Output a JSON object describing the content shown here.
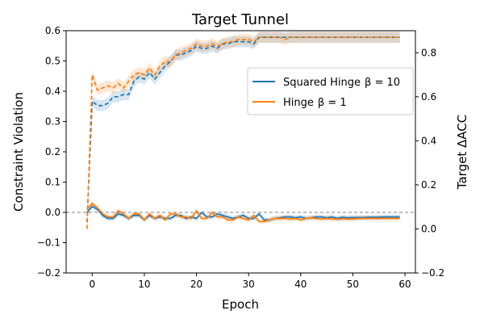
{
  "chart_data": {
    "type": "line",
    "title": "Target Tunnel",
    "xlabel": "Epoch",
    "ylabel": "Constraint Violation",
    "ylabel_right": "Target ΔACC",
    "xlim": [
      -5,
      62
    ],
    "ylim": [
      -0.2,
      0.6
    ],
    "ylim_right": [
      -0.2,
      0.9
    ],
    "xticks": [
      0,
      10,
      20,
      30,
      40,
      50,
      60
    ],
    "yticks": [
      -0.2,
      -0.1,
      0.0,
      0.1,
      0.2,
      0.3,
      0.4,
      0.5,
      0.6
    ],
    "yticks_right": [
      -0.2,
      0.0,
      0.2,
      0.4,
      0.6,
      0.8
    ],
    "ytick_labels": [
      "−0.2",
      "−0.1",
      "0.0",
      "0.1",
      "0.2",
      "0.3",
      "0.4",
      "0.5",
      "0.6"
    ],
    "ytick_labels_right": [
      "−0.2",
      "0.0",
      "0.2",
      "0.4",
      "0.6",
      "0.8"
    ],
    "xtick_labels": [
      "0",
      "10",
      "20",
      "30",
      "40",
      "50",
      "60"
    ],
    "reference_line_y": 0.0,
    "legend_position": "center-right",
    "legend": [
      {
        "series": "Squared Hinge",
        "label": "Squared Hinge",
        "param": "β = 10",
        "color": "#1f77b4"
      },
      {
        "series": "Hinge",
        "label": "Hinge",
        "param": "β = 1",
        "color": "#ff7f0e"
      }
    ],
    "epochs": [
      -1,
      0,
      1,
      2,
      3,
      4,
      5,
      6,
      7,
      8,
      9,
      10,
      11,
      12,
      13,
      14,
      15,
      16,
      17,
      18,
      19,
      20,
      21,
      22,
      23,
      24,
      25,
      26,
      27,
      28,
      29,
      30,
      31,
      32,
      33,
      34,
      35,
      36,
      37,
      38,
      39,
      40,
      41,
      42,
      43,
      44,
      45,
      46,
      47,
      48,
      49,
      50,
      51,
      52,
      53,
      54,
      55,
      56,
      57,
      58,
      59
    ],
    "series": [
      {
        "name": "Squared Hinge",
        "color": "#1f77b4",
        "axis": "left",
        "style": "solid",
        "metric": "Constraint Violation",
        "values": [
          0.0,
          0.02,
          0.01,
          -0.01,
          -0.02,
          -0.02,
          -0.005,
          -0.01,
          -0.02,
          -0.01,
          -0.01,
          -0.025,
          -0.01,
          -0.02,
          -0.015,
          -0.02,
          -0.02,
          -0.01,
          -0.01,
          -0.02,
          -0.015,
          -0.02,
          0.0,
          -0.015,
          -0.015,
          -0.005,
          -0.01,
          -0.015,
          -0.02,
          -0.015,
          -0.01,
          -0.02,
          -0.02,
          -0.005,
          -0.025,
          -0.025,
          -0.02,
          -0.018,
          -0.015,
          -0.015,
          -0.018,
          -0.015,
          -0.02,
          -0.018,
          -0.015,
          -0.015,
          -0.018,
          -0.015,
          -0.02,
          -0.016,
          -0.018,
          -0.017,
          -0.017,
          -0.017,
          -0.016,
          -0.016,
          -0.016,
          -0.015,
          -0.015,
          -0.015,
          -0.015
        ]
      },
      {
        "name": "Hinge",
        "color": "#ff7f0e",
        "axis": "left",
        "style": "solid",
        "metric": "Constraint Violation",
        "values": [
          0.01,
          0.03,
          0.015,
          -0.005,
          -0.015,
          -0.015,
          0.005,
          -0.005,
          -0.02,
          -0.005,
          -0.005,
          -0.025,
          -0.005,
          -0.02,
          -0.01,
          -0.025,
          -0.005,
          -0.005,
          -0.015,
          -0.015,
          -0.02,
          0.005,
          -0.02,
          -0.02,
          0.0,
          -0.015,
          -0.015,
          -0.025,
          -0.025,
          -0.015,
          -0.02,
          -0.025,
          -0.01,
          -0.03,
          -0.03,
          -0.025,
          -0.02,
          -0.02,
          -0.02,
          -0.022,
          -0.02,
          -0.025,
          -0.02,
          -0.018,
          -0.02,
          -0.022,
          -0.02,
          -0.022,
          -0.022,
          -0.022,
          -0.022,
          -0.022,
          -0.02,
          -0.02,
          -0.02,
          -0.02,
          -0.02,
          -0.02,
          -0.02,
          -0.02,
          -0.02
        ]
      },
      {
        "name": "Squared Hinge",
        "color": "#1f77b4",
        "axis": "right",
        "style": "dashed",
        "metric": "Target ΔACC",
        "values": [
          0.03,
          0.58,
          0.56,
          0.56,
          0.57,
          0.6,
          0.6,
          0.61,
          0.61,
          0.67,
          0.69,
          0.68,
          0.71,
          0.68,
          0.71,
          0.74,
          0.76,
          0.79,
          0.79,
          0.8,
          0.81,
          0.83,
          0.82,
          0.82,
          0.83,
          0.82,
          0.84,
          0.84,
          0.85,
          0.85,
          0.85,
          0.85,
          0.84,
          0.87,
          0.87,
          0.87,
          0.87,
          0.87,
          0.87,
          0.87,
          0.87,
          0.87,
          0.87,
          0.87,
          0.87,
          0.87,
          0.87,
          0.87,
          0.87,
          0.87,
          0.87,
          0.87,
          0.87,
          0.87,
          0.87,
          0.87,
          0.87,
          0.87,
          0.87,
          0.87,
          0.87
        ]
      },
      {
        "name": "Hinge",
        "color": "#ff7f0e",
        "axis": "right",
        "style": "dashed",
        "metric": "Target ΔACC",
        "values": [
          0.0,
          0.7,
          0.63,
          0.64,
          0.65,
          0.64,
          0.66,
          0.64,
          0.67,
          0.7,
          0.71,
          0.7,
          0.73,
          0.7,
          0.74,
          0.76,
          0.76,
          0.79,
          0.8,
          0.81,
          0.82,
          0.84,
          0.83,
          0.83,
          0.84,
          0.83,
          0.84,
          0.85,
          0.85,
          0.86,
          0.86,
          0.86,
          0.85,
          0.87,
          0.87,
          0.87,
          0.87,
          0.87,
          0.86,
          0.87,
          0.87,
          0.87,
          0.87,
          0.87,
          0.87,
          0.87,
          0.87,
          0.87,
          0.87,
          0.87,
          0.87,
          0.87,
          0.87,
          0.87,
          0.87,
          0.87,
          0.87,
          0.87,
          0.87,
          0.87,
          0.87
        ]
      }
    ]
  }
}
